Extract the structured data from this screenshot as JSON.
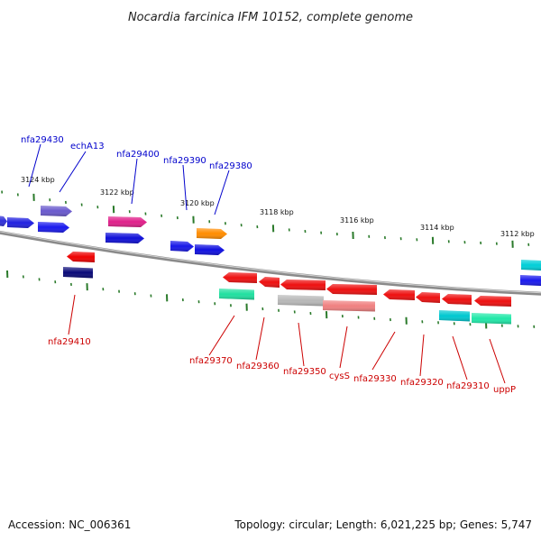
{
  "title": "Nocardia farcinica IFM 10152, complete genome",
  "accession": "Accession: NC_006361",
  "summary": "Topology: circular; Length: 6,021,225 bp; Genes: 5,747",
  "colors": {
    "forward_label": "#0000cc",
    "reverse_label": "#cc0000",
    "tick": "#2a7a2a",
    "backbone": "#8a8a8a"
  },
  "scale_labels": [
    "3124 kbp",
    "3122 kbp",
    "3120 kbp",
    "3118 kbp",
    "3116 kbp",
    "3114 kbp",
    "3112 kbp"
  ],
  "forward_genes": [
    {
      "color": "#3030d8"
    },
    {
      "color": "#2020e0"
    },
    {
      "color": "#6a5acd"
    },
    {
      "color": "#1a1aee"
    },
    {
      "color": "#e0208a"
    },
    {
      "color": "#1010d8"
    },
    {
      "color": "#1818e8"
    },
    {
      "color": "#ff8c00"
    },
    {
      "color": "#1010e0"
    },
    {
      "color": "#00cfd8"
    },
    {
      "color": "#1a1aee"
    }
  ],
  "reverse_genes": [
    {
      "color": "#ee0000"
    },
    {
      "color": "#0a0a78"
    },
    {
      "color": "#ee1010"
    },
    {
      "color": "#20e0a0"
    },
    {
      "color": "#ee1010"
    },
    {
      "color": "#ee1010"
    },
    {
      "color": "#b8b8b8"
    },
    {
      "color": "#ee1010"
    },
    {
      "color": "#f08080"
    },
    {
      "color": "#ee1010"
    },
    {
      "color": "#ee1010"
    },
    {
      "color": "#ee1010"
    },
    {
      "color": "#00c8d0"
    },
    {
      "color": "#ee1010"
    },
    {
      "color": "#20e8a8"
    }
  ],
  "forward_labels": [
    "nfa29430",
    "echA13",
    "nfa29400",
    "nfa29390",
    "nfa29380"
  ],
  "reverse_labels": [
    "nfa29410",
    "nfa29370",
    "nfa29360",
    "nfa29350",
    "cysS",
    "nfa29330",
    "nfa29320",
    "nfa29310",
    "uppP"
  ]
}
